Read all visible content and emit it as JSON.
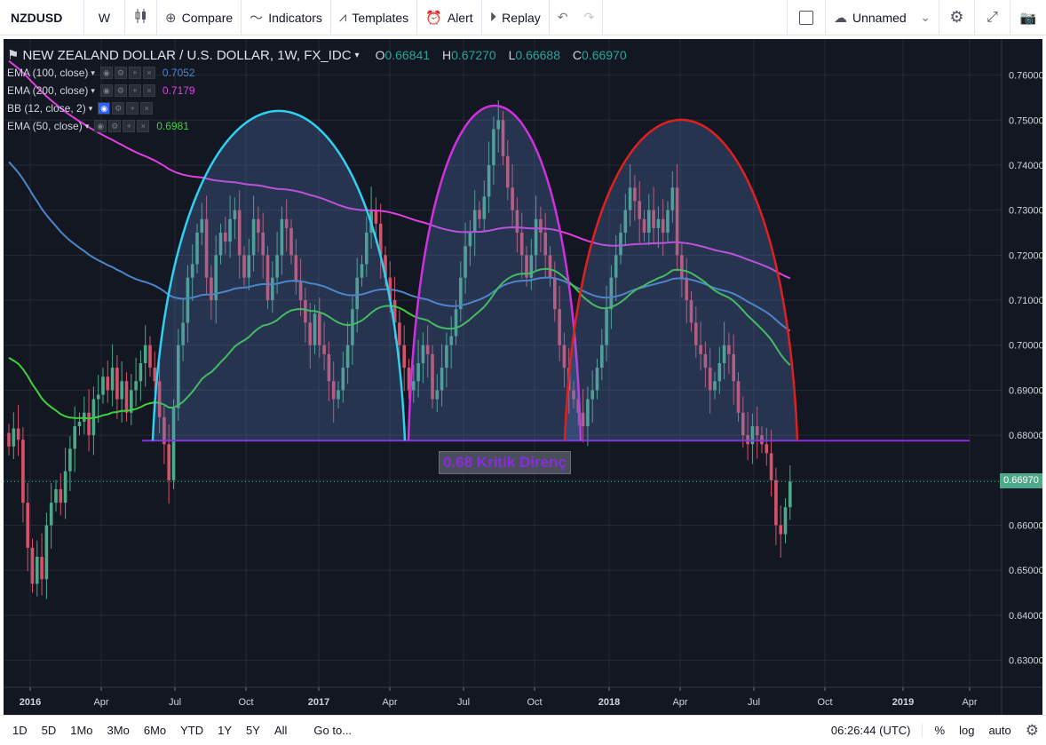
{
  "toolbar": {
    "symbol": "NZDUSD",
    "interval": "W",
    "compare": "Compare",
    "indicators": "Indicators",
    "templates": "Templates",
    "alert": "Alert",
    "replay": "Replay",
    "layout_name": "Unnamed"
  },
  "legend": {
    "title": "NEW ZEALAND DOLLAR / U.S. DOLLAR, 1W, FX_IDC",
    "open_label": "O",
    "open": "0.66841",
    "high_label": "H",
    "high": "0.67270",
    "low_label": "L",
    "low": "0.66688",
    "close_label": "C",
    "close": "0.66970"
  },
  "indicators": [
    {
      "name": "EMA (100, close)",
      "value": "0.7052",
      "color": "#4a86c8"
    },
    {
      "name": "EMA (200, close)",
      "value": "0.7179",
      "color": "#e040e0"
    },
    {
      "name": "BB (12, close, 2)",
      "value": "",
      "color": "#d1d4dc"
    },
    {
      "name": "EMA (50, close)",
      "value": "0.6981",
      "color": "#3cd23c"
    }
  ],
  "annotation": "0.68 Kritik Direnç",
  "current_price": "0.66970",
  "chart_data": {
    "type": "candlestick",
    "y_ticks": [
      "0.76000",
      "0.75000",
      "0.74000",
      "0.73000",
      "0.72000",
      "0.71000",
      "0.70000",
      "0.69000",
      "0.68000",
      "0.67000",
      "0.66000",
      "0.65000",
      "0.64000",
      "0.63000"
    ],
    "x_ticks": [
      "2016",
      "Apr",
      "Jul",
      "Oct",
      "2017",
      "Apr",
      "Jul",
      "Oct",
      "2018",
      "Apr",
      "Jul",
      "Oct",
      "2019",
      "Apr"
    ],
    "ylim": [
      0.624,
      0.768
    ],
    "resistance": 0.6788,
    "current": 0.6697,
    "colors": {
      "up": "#4ea98a",
      "down": "#d6526a",
      "ema50": "#3cd23c",
      "ema100": "#4a86c8",
      "ema200": "#e040e0",
      "arc1": "#30d0f0",
      "arc2": "#d030e0",
      "arc3": "#e02020",
      "resistance": "#8a2be2"
    },
    "closes": [
      0.6775,
      0.6815,
      0.679,
      0.665,
      0.655,
      0.647,
      0.653,
      0.648,
      0.66,
      0.665,
      0.668,
      0.665,
      0.672,
      0.677,
      0.682,
      0.683,
      0.685,
      0.68,
      0.688,
      0.689,
      0.693,
      0.69,
      0.695,
      0.688,
      0.692,
      0.685,
      0.69,
      0.692,
      0.696,
      0.7,
      0.695,
      0.692,
      0.684,
      0.678,
      0.67,
      0.686,
      0.7,
      0.705,
      0.715,
      0.718,
      0.725,
      0.728,
      0.715,
      0.71,
      0.72,
      0.725,
      0.723,
      0.728,
      0.73,
      0.72,
      0.715,
      0.72,
      0.728,
      0.725,
      0.72,
      0.71,
      0.715,
      0.72,
      0.728,
      0.726,
      0.72,
      0.714,
      0.71,
      0.705,
      0.7,
      0.707,
      0.7,
      0.698,
      0.692,
      0.688,
      0.69,
      0.695,
      0.7,
      0.708,
      0.715,
      0.718,
      0.725,
      0.73,
      0.727,
      0.72,
      0.715,
      0.71,
      0.705,
      0.7,
      0.695,
      0.69,
      0.692,
      0.696,
      0.7,
      0.698,
      0.688,
      0.69,
      0.695,
      0.7,
      0.702,
      0.708,
      0.715,
      0.722,
      0.725,
      0.73,
      0.728,
      0.733,
      0.74,
      0.748,
      0.75,
      0.742,
      0.735,
      0.73,
      0.725,
      0.72,
      0.715,
      0.72,
      0.728,
      0.725,
      0.72,
      0.715,
      0.708,
      0.7,
      0.695,
      0.69,
      0.688,
      0.685,
      0.682,
      0.688,
      0.69,
      0.695,
      0.7,
      0.708,
      0.715,
      0.72,
      0.725,
      0.73,
      0.735,
      0.732,
      0.728,
      0.725,
      0.73,
      0.726,
      0.728,
      0.725,
      0.73,
      0.735,
      0.72,
      0.715,
      0.71,
      0.705,
      0.7,
      0.698,
      0.695,
      0.69,
      0.692,
      0.696,
      0.7,
      0.698,
      0.692,
      0.685,
      0.68,
      0.678,
      0.682,
      0.68,
      0.678,
      0.676,
      0.67,
      0.66,
      0.658,
      0.664,
      0.6697
    ]
  },
  "bottombar": {
    "ranges": [
      "1D",
      "5D",
      "1Mo",
      "3Mo",
      "6Mo",
      "YTD",
      "1Y",
      "5Y",
      "All"
    ],
    "goto": "Go to...",
    "time": "06:26:44 (UTC)",
    "percent": "%",
    "log": "log",
    "auto": "auto"
  }
}
